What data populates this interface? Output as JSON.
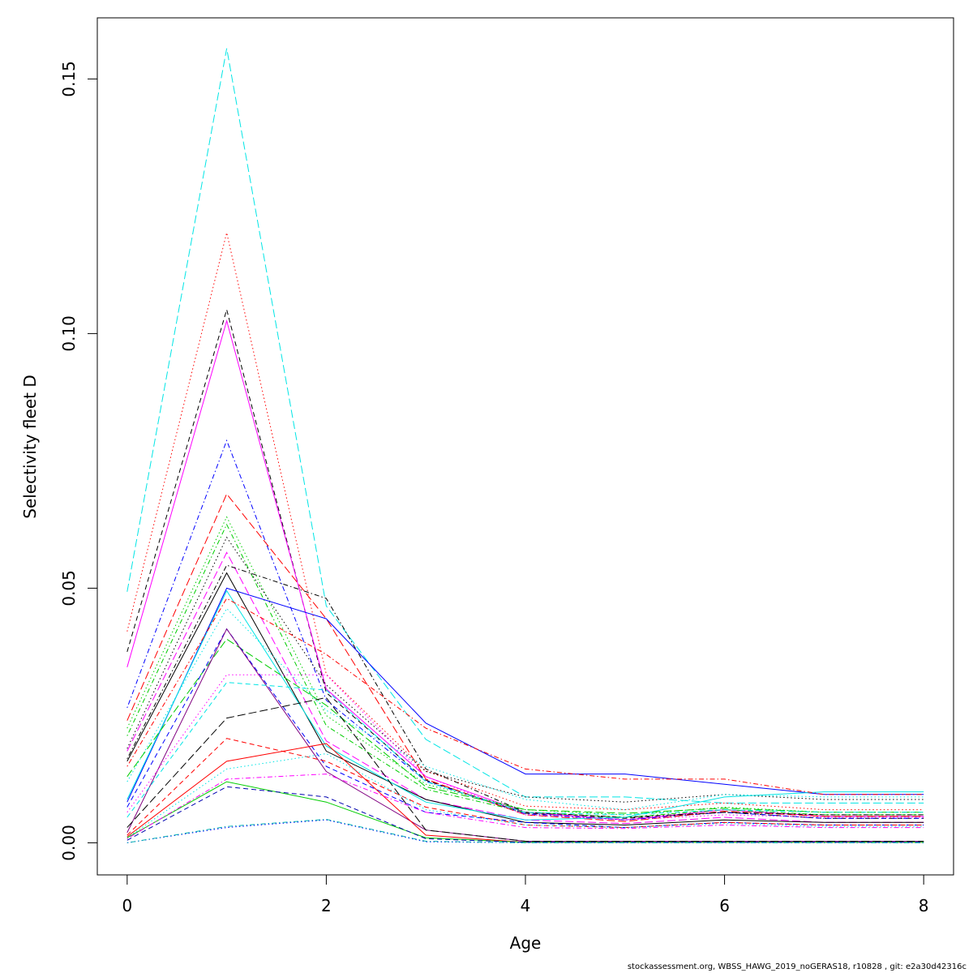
{
  "footer": "stockassessment.org, WBSS_HAWG_2019_noGERAS18, r10828 , git: e2a30d42316c",
  "chart_data": {
    "type": "line",
    "xlabel": "Age",
    "ylabel": "Selectivity fleet D",
    "xlim": [
      -0.3,
      8.3
    ],
    "ylim": [
      -0.0063,
      0.162
    ],
    "xticks": [
      0,
      2,
      4,
      6,
      8
    ],
    "yticks": [
      "0.00",
      "0.05",
      "0.10",
      "0.15"
    ],
    "grid": false,
    "legend": "none",
    "x": [
      0,
      1,
      2,
      3,
      4,
      5,
      6,
      7,
      8
    ],
    "series": [
      {
        "color": "#00e5e5",
        "dash": "longdash",
        "values": [
          0.0493,
          0.156,
          0.0465,
          0.0203,
          0.009,
          0.009,
          0.0078,
          0.0078,
          0.0078
        ]
      },
      {
        "color": "#ff0000",
        "dash": "dotted",
        "values": [
          0.0415,
          0.1198,
          0.0331,
          0.0141,
          0.0072,
          0.0065,
          0.0078,
          0.0065,
          0.0065
        ]
      },
      {
        "color": "#000000",
        "dash": "dashed",
        "values": [
          0.0375,
          0.1047,
          0.0295,
          0.0123,
          0.0058,
          0.0048,
          0.006,
          0.0048,
          0.0048
        ]
      },
      {
        "color": "#ff00ff",
        "dash": "solid",
        "values": [
          0.0345,
          0.1025,
          0.0302,
          0.013,
          0.006,
          0.0045,
          0.0065,
          0.0052,
          0.0052
        ]
      },
      {
        "color": "#0000ff",
        "dash": "dotdash",
        "values": [
          0.0265,
          0.079,
          0.028,
          0.0121,
          0.0057,
          0.0045,
          0.006,
          0.0048,
          0.0048
        ]
      },
      {
        "color": "#ff0000",
        "dash": "longdash",
        "values": [
          0.024,
          0.0685,
          0.044,
          0.0125,
          0.0055,
          0.0042,
          0.0062,
          0.0052,
          0.0052
        ]
      },
      {
        "color": "#00cd00",
        "dash": "dotted",
        "values": [
          0.0225,
          0.064,
          0.025,
          0.0115,
          0.0065,
          0.0055,
          0.007,
          0.006,
          0.006
        ]
      },
      {
        "color": "#00cd00",
        "dash": "dotdash",
        "values": [
          0.021,
          0.0625,
          0.023,
          0.0105,
          0.006,
          0.005,
          0.0065,
          0.0055,
          0.0055
        ]
      },
      {
        "color": "#000000",
        "dash": "dotted",
        "values": [
          0.0185,
          0.06,
          0.031,
          0.014,
          0.009,
          0.008,
          0.0095,
          0.0085,
          0.0085
        ]
      },
      {
        "color": "#ff00ff",
        "dash": "longdash",
        "values": [
          0.018,
          0.057,
          0.02,
          0.0085,
          0.0045,
          0.0038,
          0.005,
          0.004,
          0.004
        ]
      },
      {
        "color": "#000000",
        "dash": "dotdash",
        "values": [
          0.0165,
          0.0545,
          0.048,
          0.0145,
          0.006,
          0.005,
          0.006,
          0.0055,
          0.0055
        ]
      },
      {
        "color": "#000000",
        "dash": "solid",
        "values": [
          0.016,
          0.053,
          0.018,
          0.0085,
          0.004,
          0.0035,
          0.0045,
          0.004,
          0.004
        ]
      },
      {
        "color": "#0000ff",
        "dash": "solid",
        "values": [
          0.008,
          0.05,
          0.044,
          0.0235,
          0.0135,
          0.0135,
          0.0115,
          0.0095,
          0.0095
        ]
      },
      {
        "color": "#00e5e5",
        "dash": "solid",
        "values": [
          0.0085,
          0.0495,
          0.019,
          0.008,
          0.0045,
          0.005,
          0.009,
          0.01,
          0.01
        ]
      },
      {
        "color": "#ff0000",
        "dash": "dotdash",
        "values": [
          0.015,
          0.048,
          0.037,
          0.0225,
          0.0145,
          0.0125,
          0.0125,
          0.0095,
          0.0095
        ]
      },
      {
        "color": "#00e5e5",
        "dash": "dotted",
        "values": [
          0.012,
          0.046,
          0.026,
          0.015,
          0.0085,
          0.0065,
          0.0095,
          0.009,
          0.009
        ]
      },
      {
        "color": "#00cd00",
        "dash": "longdash",
        "values": [
          0.013,
          0.04,
          0.027,
          0.011,
          0.0065,
          0.0058,
          0.0068,
          0.006,
          0.006
        ]
      },
      {
        "color": "#0000ff",
        "dash": "dashed",
        "values": [
          0.007,
          0.042,
          0.015,
          0.006,
          0.004,
          0.003,
          0.004,
          0.0035,
          0.0035
        ]
      },
      {
        "color": "#800080",
        "dash": "solid",
        "values": [
          0.002,
          0.042,
          0.014,
          0.0025,
          0.0003,
          0.0003,
          0.0003,
          0.0003,
          0.0003
        ]
      },
      {
        "color": "#ff00ff",
        "dash": "dotted",
        "values": [
          0.006,
          0.033,
          0.033,
          0.013,
          0.0055,
          0.0045,
          0.0055,
          0.005,
          0.005
        ]
      },
      {
        "color": "#00e5e5",
        "dash": "dashed",
        "values": [
          0.005,
          0.0315,
          0.03,
          0.012,
          0.006,
          0.0055,
          0.0065,
          0.006,
          0.006
        ]
      },
      {
        "color": "#000000",
        "dash": "longdash",
        "values": [
          0.003,
          0.0245,
          0.0285,
          0.0025,
          0.0003,
          0.0003,
          0.0003,
          0.0003,
          0.0003
        ]
      },
      {
        "color": "#ff0000",
        "dash": "dashed",
        "values": [
          0.0015,
          0.0205,
          0.016,
          0.007,
          0.0035,
          0.003,
          0.004,
          0.0035,
          0.0035
        ]
      },
      {
        "color": "#ff0000",
        "dash": "solid",
        "values": [
          0.0012,
          0.016,
          0.0195,
          0.0015,
          0.0001,
          0.0001,
          0.0001,
          0.0001,
          0.0001
        ]
      },
      {
        "color": "#00e5e5",
        "dash": "dotted",
        "values": [
          0.001,
          0.0145,
          0.0175,
          0.0065,
          0.0035,
          0.003,
          0.0038,
          0.0032,
          0.0032
        ]
      },
      {
        "color": "#00cd00",
        "dash": "solid",
        "values": [
          0.001,
          0.012,
          0.008,
          0.001,
          0.0001,
          0.0001,
          0.0001,
          0.0001,
          0.0001
        ]
      },
      {
        "color": "#ff00ff",
        "dash": "dotdash",
        "values": [
          0.0008,
          0.0125,
          0.0135,
          0.006,
          0.003,
          0.0028,
          0.0035,
          0.003,
          0.003
        ]
      },
      {
        "color": "#0000b0",
        "dash": "dashed",
        "values": [
          0.0005,
          0.011,
          0.009,
          0.0008,
          0.0001,
          0.0001,
          0.0001,
          0.0001,
          0.0001
        ]
      },
      {
        "color": "#0000ff",
        "dash": "dotted",
        "values": [
          0.0,
          0.003,
          0.0045,
          0.0002,
          0.0,
          0.0,
          0.0,
          0.0,
          0.0
        ]
      },
      {
        "color": "#00b0b0",
        "dash": "dotdash",
        "values": [
          0.0,
          0.0032,
          0.0046,
          0.0003,
          0.0,
          0.0,
          0.0,
          0.0,
          0.0
        ]
      }
    ]
  }
}
